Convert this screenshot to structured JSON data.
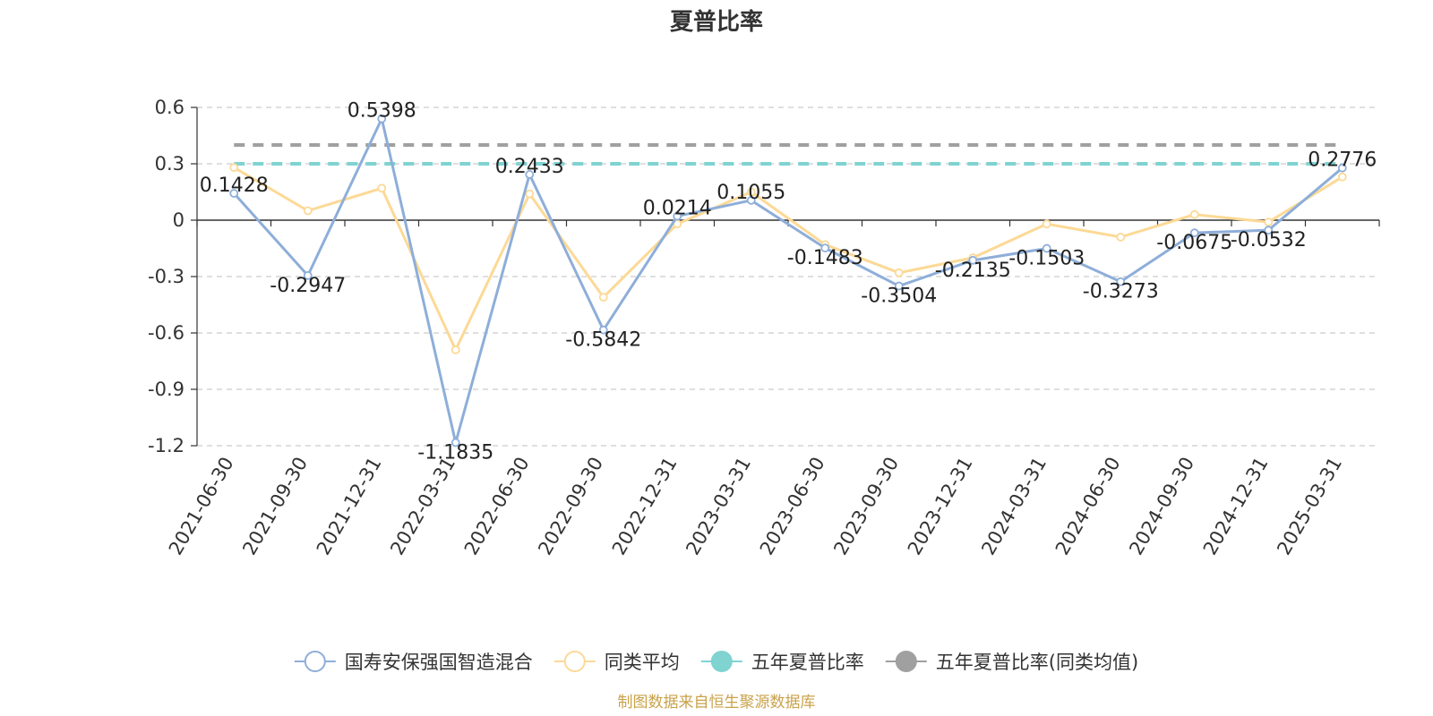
{
  "chart_data": {
    "type": "line",
    "title": "夏普比率",
    "categories": [
      "2021-06-30",
      "2021-09-30",
      "2021-12-31",
      "2022-03-31",
      "2022-06-30",
      "2022-09-30",
      "2022-12-31",
      "2023-03-31",
      "2023-06-30",
      "2023-09-30",
      "2023-12-31",
      "2024-03-31",
      "2024-06-30",
      "2024-09-30",
      "2024-12-31",
      "2025-03-31"
    ],
    "yticks": [
      "0.6",
      "0.3",
      "0",
      "-0.3",
      "-0.6",
      "-0.9",
      "-1.2"
    ],
    "ylim": [
      -1.2,
      0.6
    ],
    "grid": true,
    "legend_position": "bottom",
    "series": [
      {
        "name": "国寿安保强国智造混合",
        "color": "#8eaed9",
        "values": [
          0.1428,
          -0.2947,
          0.5398,
          -1.1835,
          0.2433,
          -0.5842,
          0.0214,
          0.1055,
          -0.1483,
          -0.3504,
          -0.2135,
          -0.1503,
          -0.3273,
          -0.0675,
          -0.0532,
          0.2776
        ],
        "labels": [
          "0.1428",
          "-0.2947",
          "0.5398",
          "-1.1835",
          "0.2433",
          "-0.5842",
          "0.0214",
          "0.1055",
          "-0.1483",
          "-0.3504",
          "-0.2135",
          "-0.1503",
          "-0.3273",
          "-0.0675",
          "-0.0532",
          "0.2776"
        ]
      },
      {
        "name": "同类平均",
        "color": "#fcd996",
        "values": [
          0.28,
          0.05,
          0.17,
          -0.69,
          0.14,
          -0.41,
          -0.02,
          0.15,
          -0.13,
          -0.28,
          -0.2,
          -0.02,
          -0.09,
          0.03,
          -0.01,
          0.23
        ]
      }
    ],
    "reference_lines": [
      {
        "name": "五年夏普比率",
        "color": "#7fd3d1",
        "value": 0.3
      },
      {
        "name": "五年夏普比率(同类均值)",
        "color": "#a0a0a0",
        "value": 0.4
      }
    ]
  },
  "source_note": "制图数据来自恒生聚源数据库"
}
